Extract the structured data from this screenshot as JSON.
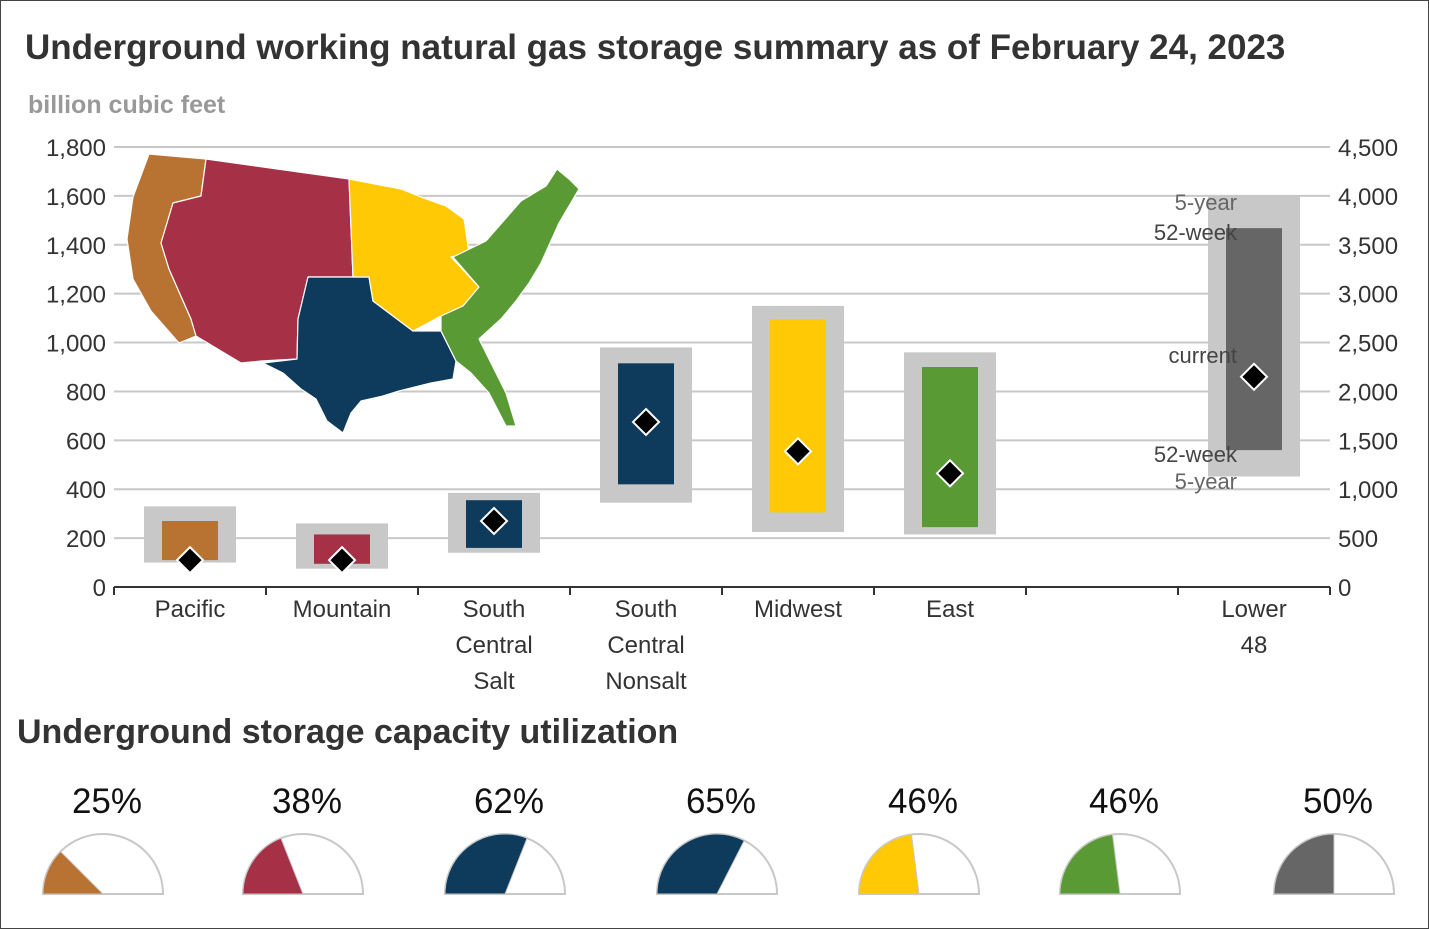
{
  "title": "Underground working natural gas storage summary as of February 24, 2023",
  "subtitle": "billion cubic feet",
  "chart_data": {
    "type": "range-bar",
    "left_axis": {
      "range": [
        0,
        1800
      ],
      "ticks": [
        "0",
        "200",
        "400",
        "600",
        "800",
        "1,000",
        "1,200",
        "1,400",
        "1,600",
        "1,800"
      ]
    },
    "right_axis": {
      "range": [
        0,
        4500
      ],
      "ticks": [
        "0",
        "500",
        "1,000",
        "1,500",
        "2,000",
        "2,500",
        "3,000",
        "3,500",
        "4,000",
        "4,500"
      ]
    },
    "grid": true,
    "annotations": {
      "five_year_top": "5-year",
      "week52_top": "52-week",
      "current": "current",
      "week52_bottom": "52-week",
      "five_year_bottom": "5-year"
    },
    "regions": [
      {
        "label_lines": [
          "Pacific"
        ],
        "color": "#B87332",
        "axis": "left",
        "five_year": [
          100,
          330
        ],
        "week52": [
          110,
          270
        ],
        "current": 110,
        "utilization": "25%",
        "utilization_value": 0.25
      },
      {
        "label_lines": [
          "Mountain"
        ],
        "color": "#A63046",
        "axis": "left",
        "five_year": [
          75,
          260
        ],
        "week52": [
          95,
          215
        ],
        "current": 110,
        "utilization": "38%",
        "utilization_value": 0.38
      },
      {
        "label_lines": [
          "South",
          "Central",
          "Salt"
        ],
        "color": "#0E3A5C",
        "axis": "left",
        "five_year": [
          140,
          385
        ],
        "week52": [
          160,
          355
        ],
        "current": 270,
        "utilization": "62%",
        "utilization_value": 0.62
      },
      {
        "label_lines": [
          "South",
          "Central",
          "Nonsalt"
        ],
        "color": "#0E3A5C",
        "axis": "left",
        "five_year": [
          345,
          980
        ],
        "week52": [
          420,
          915
        ],
        "current": 675,
        "utilization": "65%",
        "utilization_value": 0.65
      },
      {
        "label_lines": [
          "Midwest"
        ],
        "color": "#FFC905",
        "axis": "left",
        "five_year": [
          225,
          1150
        ],
        "week52": [
          305,
          1095
        ],
        "current": 555,
        "utilization": "46%",
        "utilization_value": 0.46
      },
      {
        "label_lines": [
          "East"
        ],
        "color": "#5A9A35",
        "axis": "left",
        "five_year": [
          215,
          960
        ],
        "week52": [
          245,
          900
        ],
        "current": 465,
        "utilization": "46%",
        "utilization_value": 0.46
      },
      {
        "label_lines": [
          "Lower",
          "48"
        ],
        "color": "#666666",
        "axis": "right",
        "five_year": [
          1130,
          4000
        ],
        "week52": [
          1400,
          3670
        ],
        "current": 2150,
        "utilization": "50%",
        "utilization_value": 0.5
      }
    ]
  },
  "utilization_section": {
    "title": "Underground storage capacity utilization"
  }
}
